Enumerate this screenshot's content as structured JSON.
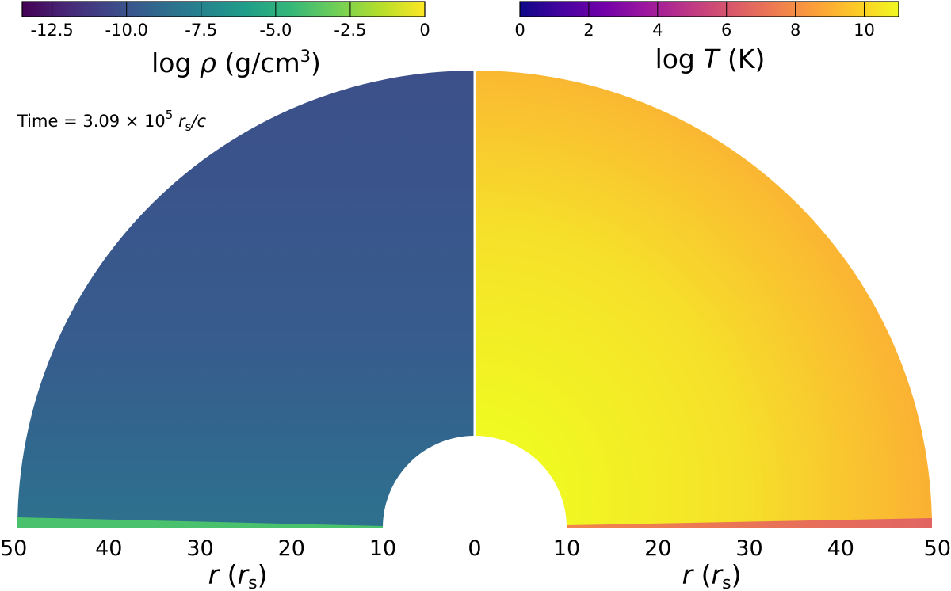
{
  "chart_data": {
    "type": "heatmap",
    "annotation": {
      "prefix": "Time = 3.09 × 10",
      "exponent": "5",
      "unit_main": "r",
      "unit_sub": "s",
      "unit_tail": "/c"
    },
    "colors": {
      "rho_bulk_top": "#3c4f8a",
      "rho_bulk_mid": "#375c8d",
      "rho_bulk_low": "#2d718e",
      "rho_disk": "#4ac16d",
      "T_bulk_in": "#f0f921",
      "T_bulk_out": "#fca835",
      "T_disk": "#e16462",
      "T_disk_edge": "#f2844b"
    },
    "panels": [
      {
        "name": "density",
        "side": "left",
        "quantity": "log ρ",
        "colorbar": {
          "label_func": "log",
          "label_sym": "ρ",
          "label_unit_pre": "(g/cm",
          "label_unit_exp": "3",
          "label_unit_post": ")",
          "vmin": -13.5,
          "vmax": 0,
          "ticks": [
            -12.5,
            -10.0,
            -7.5,
            -5.0,
            -2.5,
            0
          ],
          "tick_labels": [
            "-12.5",
            "-10.0",
            "-7.5",
            "-5.0",
            "-2.5",
            "0"
          ],
          "colormap": "viridis",
          "stops": [
            "#440154",
            "#482878",
            "#3e4989",
            "#31688e",
            "#26828e",
            "#1f9e89",
            "#35b779",
            "#6ece58",
            "#b5de2b",
            "#fde725"
          ]
        },
        "field": {
          "bulk_log_rho_approx": -10.0,
          "equatorial_disk_log_rho_approx": -5.0
        }
      },
      {
        "name": "temperature",
        "side": "right",
        "quantity": "log T",
        "colorbar": {
          "label_func": "log",
          "label_sym": "T",
          "label_unit": "(K)",
          "vmin": 0,
          "vmax": 11,
          "ticks": [
            0,
            2,
            4,
            6,
            8,
            10
          ],
          "tick_labels": [
            "0",
            "2",
            "4",
            "6",
            "8",
            "10"
          ],
          "colormap": "plasma",
          "stops": [
            "#0d0887",
            "#46039f",
            "#7201a8",
            "#9c179e",
            "#bd3786",
            "#d8576b",
            "#ed7953",
            "#fb9f3a",
            "#fdca26",
            "#f0f921"
          ]
        },
        "field": {
          "bulk_log_T_approx": 10.5,
          "equatorial_disk_log_T_approx": 6.5
        }
      }
    ],
    "x_axis": {
      "label_main": "r",
      "label_paren_open": "(",
      "label_r": "r",
      "label_sub": "s",
      "label_paren_close": ")",
      "ticks": [
        -50,
        -40,
        -30,
        -20,
        -10,
        0,
        10,
        20,
        30,
        40,
        50
      ],
      "tick_labels": [
        "50",
        "40",
        "30",
        "20",
        "10",
        "0",
        "10",
        "20",
        "30",
        "40",
        "50"
      ],
      "r_inner": 10,
      "r_outer": 50,
      "xlim": [
        -50,
        50
      ]
    }
  }
}
